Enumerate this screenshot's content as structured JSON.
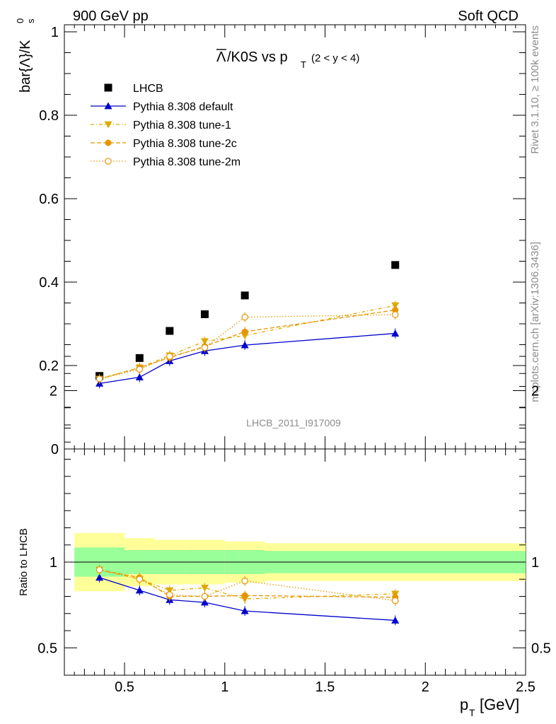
{
  "header": {
    "left": "900 GeV pp",
    "right": "Soft QCD"
  },
  "side": {
    "rivet": "Rivet 3.1.10, ≥ 100k events",
    "mcplots": "mcplots.cern.ch [arXiv:1306.3436]"
  },
  "watermark": "LHCB_2011_I917009",
  "chart_data": [
    {
      "type": "scatter",
      "title": "Λ̅/K0S vs p_T (2 < y < 4)",
      "title_main": "/K0S vs p",
      "title_overline": "Λ",
      "title_sub": "T",
      "title_range": "(2 < y < 4)",
      "ylabel": "bar{Λ}/K⁰ₛ",
      "ylabel_main": "bar{Λ}/K",
      "ylabel_sup": "0",
      "ylabel_sub": "s",
      "xlim": [
        0.2,
        2.5
      ],
      "ylim": [
        0,
        1.0
      ],
      "yticks": [
        "0",
        "0.2",
        "0.4",
        "0.6",
        "0.8",
        "1"
      ],
      "legend_position": "top-left",
      "x": [
        0.375,
        0.575,
        0.725,
        0.9,
        1.1,
        1.85
      ],
      "series": [
        {
          "name": "LHCB",
          "style": "data",
          "values": [
            0.175,
            0.218,
            0.283,
            0.323,
            0.368,
            0.441
          ],
          "color": "#000000"
        },
        {
          "name": "Pythia 8.308 default",
          "style": "default",
          "values": [
            0.157,
            0.172,
            0.211,
            0.235,
            0.249,
            0.277
          ],
          "color": "#0000cc"
        },
        {
          "name": "Pythia 8.308 tune-1",
          "style": "tune1",
          "values": [
            0.168,
            0.195,
            0.224,
            0.258,
            0.272,
            0.344
          ],
          "color": "#ddaa00"
        },
        {
          "name": "Pythia 8.308 tune-2c",
          "style": "tune2c",
          "values": [
            0.168,
            0.195,
            0.219,
            0.246,
            0.281,
            0.333
          ],
          "color": "#e69500"
        },
        {
          "name": "Pythia 8.308 tune-2m",
          "style": "tune2m",
          "values": [
            0.168,
            0.191,
            0.222,
            0.243,
            0.316,
            0.322
          ],
          "color": "#e69500"
        }
      ]
    },
    {
      "type": "scatter",
      "ylabel": "Ratio to LHCB",
      "xlabel": "p_T [GeV]",
      "xlabel_main": "p",
      "xlabel_sub": "T",
      "xlabel_unit": "[GeV]",
      "xlim": [
        0.2,
        2.5
      ],
      "ylim": [
        0.35,
        2.3
      ],
      "xticks": [
        "0.5",
        "1",
        "1.5",
        "2",
        "2.5"
      ],
      "yticks": [
        "0.5",
        "1",
        "2"
      ],
      "x": [
        0.375,
        0.575,
        0.725,
        0.9,
        1.1,
        1.85
      ],
      "bands": {
        "edges": [
          0.25,
          0.5,
          0.65,
          0.8,
          1.0,
          1.2,
          2.5
        ],
        "inner": [
          [
            0.915,
            1.085
          ],
          [
            0.93,
            1.07
          ],
          [
            0.93,
            1.07
          ],
          [
            0.93,
            1.07
          ],
          [
            0.93,
            1.07
          ],
          [
            0.935,
            1.065
          ]
        ],
        "outer": [
          [
            0.83,
            1.17
          ],
          [
            0.86,
            1.14
          ],
          [
            0.87,
            1.13
          ],
          [
            0.87,
            1.13
          ],
          [
            0.88,
            1.12
          ],
          [
            0.89,
            1.11
          ]
        ]
      },
      "series": [
        {
          "name": "Pythia 8.308 default",
          "style": "default",
          "values": [
            0.91,
            0.835,
            0.78,
            0.765,
            0.715,
            0.66
          ],
          "color": "#0000cc"
        },
        {
          "name": "Pythia 8.308 tune-1",
          "style": "tune1",
          "values": [
            0.955,
            0.9,
            0.835,
            0.85,
            0.785,
            0.815
          ],
          "color": "#ddaa00"
        },
        {
          "name": "Pythia 8.308 tune-2c",
          "style": "tune2c",
          "values": [
            0.955,
            0.91,
            0.8,
            0.8,
            0.805,
            0.795
          ],
          "color": "#e69500"
        },
        {
          "name": "Pythia 8.308 tune-2m",
          "style": "tune2m",
          "values": [
            0.955,
            0.9,
            0.81,
            0.8,
            0.89,
            0.775
          ],
          "color": "#e69500"
        }
      ]
    }
  ]
}
